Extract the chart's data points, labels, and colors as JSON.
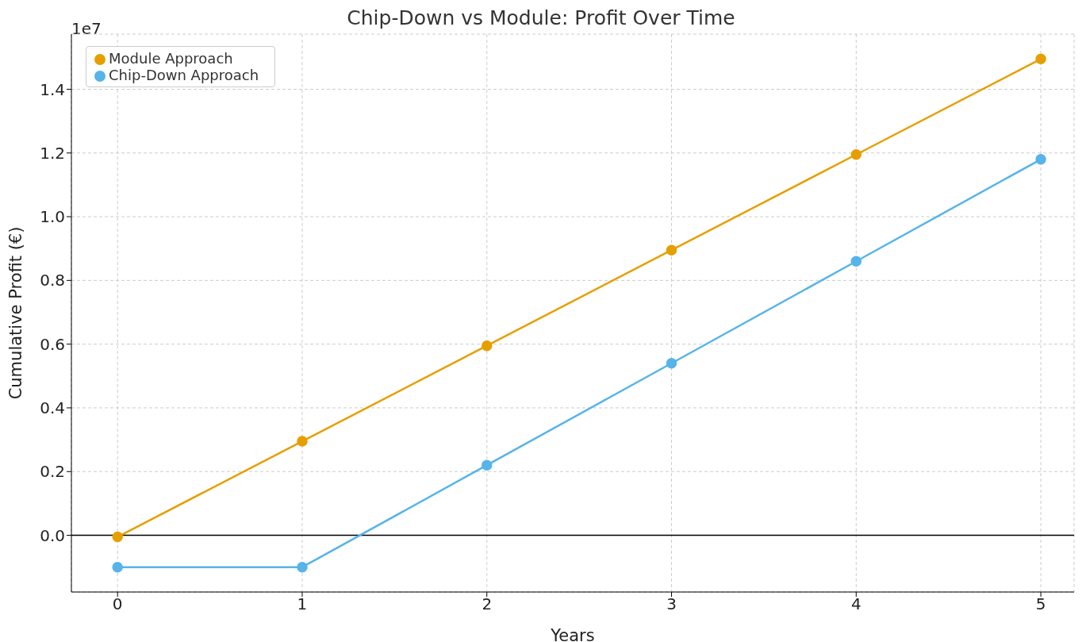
{
  "chart_data": {
    "type": "line",
    "title": "Chip-Down vs Module: Profit Over Time",
    "xlabel": "Years",
    "ylabel": "Cumulative Profit (€)",
    "x": [
      0,
      1,
      2,
      3,
      4,
      5
    ],
    "series": [
      {
        "name": "Module Approach",
        "color": "#e69f00",
        "values": [
          -0.005,
          0.295,
          0.595,
          0.895,
          1.195,
          1.495
        ]
      },
      {
        "name": "Chip-Down Approach",
        "color": "#56b4e9",
        "values": [
          -0.1,
          -0.1,
          0.22,
          0.54,
          0.86,
          1.18
        ]
      }
    ],
    "xlim": [
      -0.25,
      5.18
    ],
    "xticks": [
      0,
      1,
      2,
      3,
      4,
      5
    ],
    "ylim": [
      -0.178,
      1.573
    ],
    "yticks": [
      {
        "value": 0,
        "label": "0.0"
      },
      0.2,
      0.4,
      0.6,
      0.8,
      {
        "value": 1,
        "label": "1.0"
      },
      1.2,
      1.4
    ],
    "annotations": [
      "1e7"
    ],
    "ref_lines": [
      {
        "axis": "y",
        "value": 0,
        "color": "#000000"
      }
    ],
    "grid": true,
    "legend": "top left",
    "marker": "circle",
    "line_style": "solid"
  }
}
